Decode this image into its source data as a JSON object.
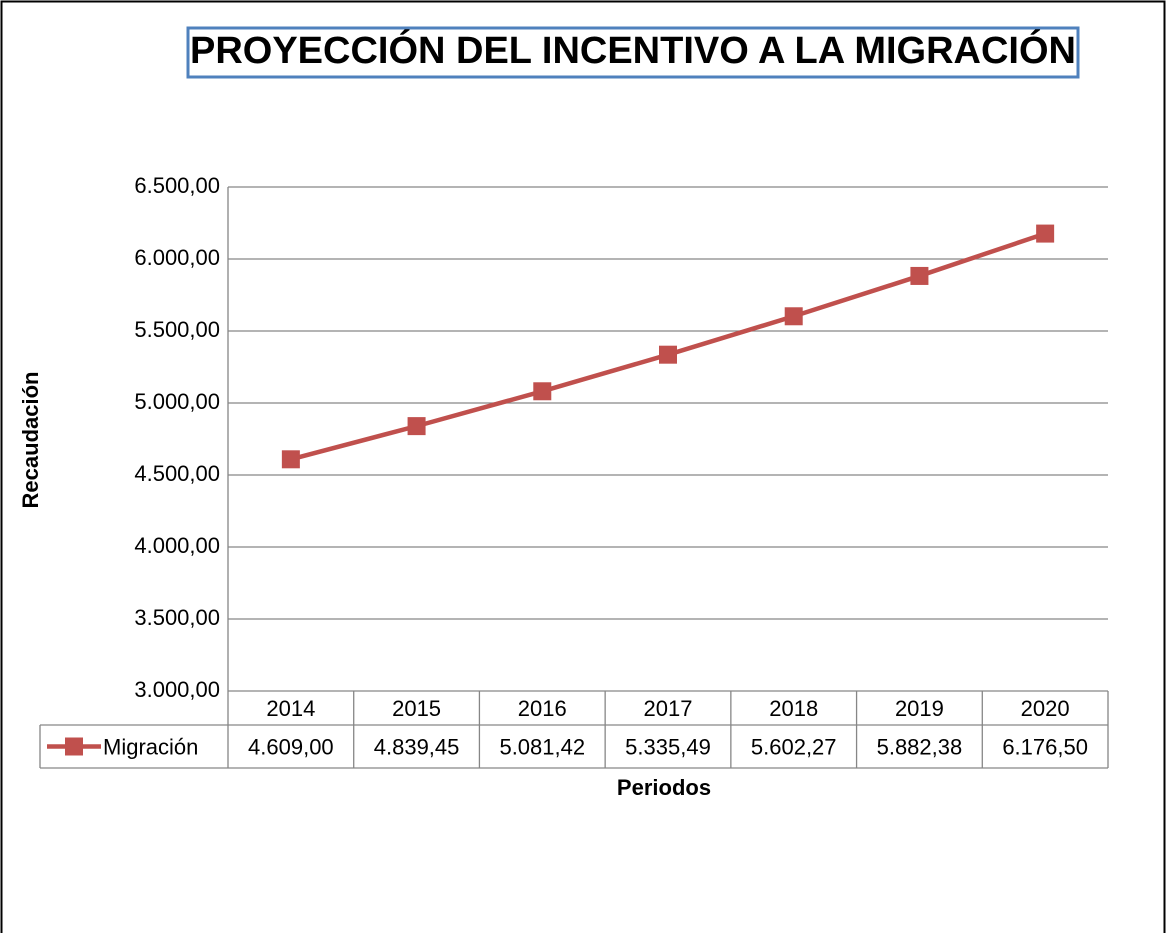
{
  "chart_data": {
    "type": "line",
    "title": "PROYECCIÓN DEL INCENTIVO A LA MIGRACIÓN",
    "x_label": "Periodos",
    "y_label": "Recaudación",
    "categories": [
      "2014",
      "2015",
      "2016",
      "2017",
      "2018",
      "2019",
      "2020"
    ],
    "series": [
      {
        "name": "Migración",
        "color": "#c0504d",
        "values": [
          4609.0,
          4839.45,
          5081.42,
          5335.49,
          5602.27,
          5882.38,
          6176.5
        ],
        "value_labels": [
          "4.609,00",
          "4.839,45",
          "5.081,42",
          "5.335,49",
          "5.602,27",
          "5.882,38",
          "6.176,50"
        ]
      }
    ],
    "ylim": [
      3000,
      6500
    ],
    "yticks": [
      {
        "value": 3000,
        "label": "3.000,00"
      },
      {
        "value": 3500,
        "label": "3.500,00"
      },
      {
        "value": 4000,
        "label": "4.000,00"
      },
      {
        "value": 4500,
        "label": "4.500,00"
      },
      {
        "value": 5000,
        "label": "5.000,00"
      },
      {
        "value": 5500,
        "label": "5.500,00"
      },
      {
        "value": 6000,
        "label": "6.000,00"
      },
      {
        "value": 6500,
        "label": "6.500,00"
      }
    ],
    "grid": true,
    "data_table": true
  }
}
